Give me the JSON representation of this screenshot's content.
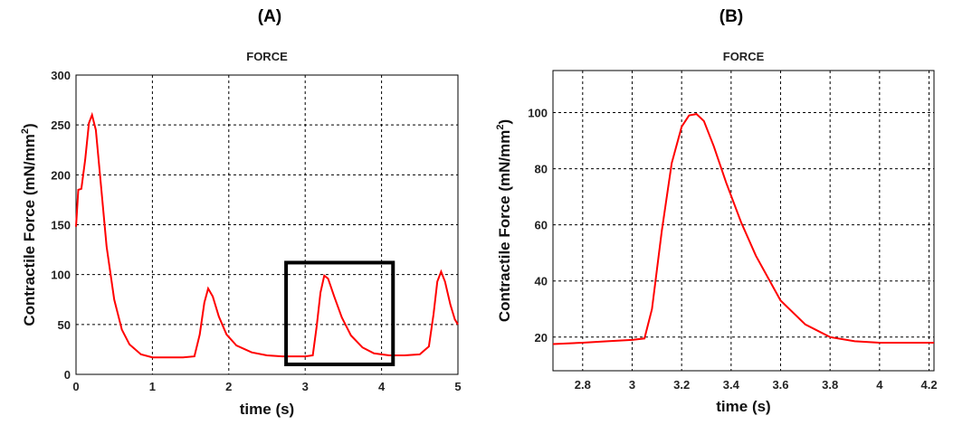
{
  "colors": {
    "series": "#ff0000",
    "grid": "#000000",
    "zoom_box": "#000000"
  },
  "chart_data": [
    {
      "panel_label": "(A)",
      "type": "line",
      "title": "FORCE",
      "xlabel": "time (s)",
      "ylabel": "Contractile Force (mN/mm",
      "ylabel_sup": "2",
      "ylabel_end": ")",
      "xlim": [
        0,
        5
      ],
      "ylim": [
        0,
        300
      ],
      "xticks": [
        0,
        1,
        2,
        3,
        4,
        5
      ],
      "yticks": [
        0,
        50,
        100,
        150,
        200,
        250,
        300
      ],
      "grid": true,
      "zoom_box": {
        "x": [
          2.75,
          4.15
        ],
        "y": [
          10,
          112
        ]
      },
      "series": [
        {
          "x": [
            0,
            0.03,
            0.07,
            0.12,
            0.17,
            0.21,
            0.26,
            0.32,
            0.4,
            0.5,
            0.6,
            0.7,
            0.85,
            1.0,
            1.2,
            1.4,
            1.55,
            1.62,
            1.68,
            1.73,
            1.79,
            1.87,
            1.97,
            2.1,
            2.3,
            2.5,
            2.7,
            3.0,
            3.1,
            3.15,
            3.2,
            3.25,
            3.3,
            3.38,
            3.48,
            3.6,
            3.75,
            3.9,
            4.1,
            4.3,
            4.5,
            4.62,
            4.68,
            4.73,
            4.78,
            4.83,
            4.9,
            4.96,
            5.0
          ],
          "y": [
            148,
            185,
            186,
            215,
            252,
            260,
            245,
            195,
            128,
            75,
            45,
            30,
            20,
            17,
            17,
            17,
            18,
            40,
            72,
            86,
            78,
            58,
            40,
            29,
            22,
            19,
            18,
            18,
            19,
            48,
            82,
            99,
            96,
            78,
            57,
            39,
            27,
            21,
            19,
            19,
            20,
            28,
            60,
            93,
            103,
            93,
            70,
            55,
            50
          ]
        }
      ]
    },
    {
      "panel_label": "(B)",
      "type": "line",
      "title": "FORCE",
      "xlabel": "time (s)",
      "ylabel": "Contractile Force (mN/mm",
      "ylabel_sup": "2",
      "ylabel_end": ")",
      "xlim": [
        2.68,
        4.22
      ],
      "ylim": [
        8,
        115
      ],
      "xticks": [
        2.8,
        3,
        3.2,
        3.4,
        3.6,
        3.8,
        4,
        4.2
      ],
      "yticks": [
        20,
        40,
        60,
        80,
        100
      ],
      "grid": true,
      "series": [
        {
          "x": [
            2.68,
            2.8,
            2.9,
            3.0,
            3.05,
            3.08,
            3.12,
            3.16,
            3.2,
            3.23,
            3.26,
            3.29,
            3.33,
            3.38,
            3.44,
            3.5,
            3.6,
            3.7,
            3.8,
            3.9,
            4.0,
            4.1,
            4.22
          ],
          "y": [
            17.5,
            18,
            18.5,
            19,
            19.5,
            30,
            58,
            82,
            95,
            99,
            99.5,
            97,
            88,
            75,
            61,
            49,
            33,
            24.5,
            20,
            18.5,
            18,
            18,
            18
          ]
        }
      ]
    }
  ]
}
